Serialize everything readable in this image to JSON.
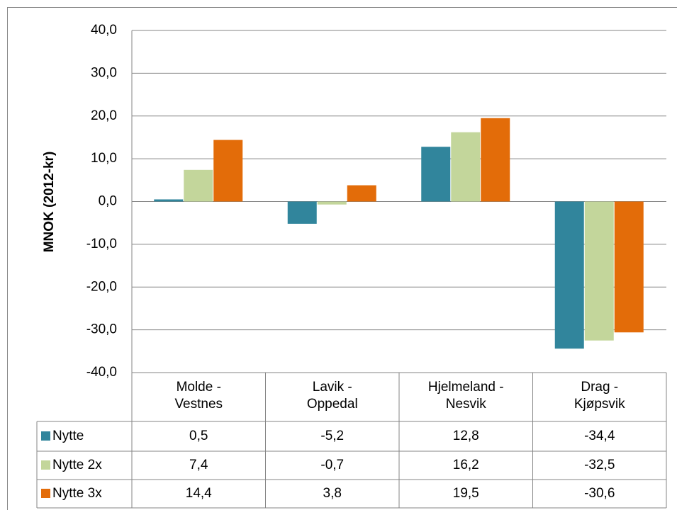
{
  "chart_data": {
    "type": "bar",
    "y_label": "MNOK (2012-kr)",
    "categories": [
      "Molde - Vestnes",
      "Lavik - Oppedal",
      "Hjelmeland - Nesvik",
      "Drag - Kjøpsvik"
    ],
    "series": [
      {
        "name": "Nytte",
        "color": "#31859c",
        "values": [
          0.5,
          -5.2,
          12.8,
          -34.4
        ],
        "value_labels": [
          "0,5",
          "-5,2",
          "12,8",
          "-34,4"
        ]
      },
      {
        "name": "Nytte 2x",
        "color": "#c3d69b",
        "values": [
          7.4,
          -0.7,
          16.2,
          -32.5
        ],
        "value_labels": [
          "7,4",
          "-0,7",
          "16,2",
          "-32,5"
        ]
      },
      {
        "name": "Nytte 3x",
        "color": "#e36c09",
        "values": [
          14.4,
          3.8,
          19.5,
          -30.6
        ],
        "value_labels": [
          "14,4",
          "3,8",
          "19,5",
          "-30,6"
        ]
      }
    ],
    "ylim": [
      -40,
      40
    ],
    "yticks": [
      {
        "value": -40,
        "label": "-40,0"
      },
      {
        "value": -30,
        "label": "-30,0"
      },
      {
        "value": -20,
        "label": "-20,0"
      },
      {
        "value": -10,
        "label": "-10,0"
      },
      {
        "value": 0,
        "label": "0,0"
      },
      {
        "value": 10,
        "label": "10,0"
      },
      {
        "value": 20,
        "label": "20,0"
      },
      {
        "value": 30,
        "label": "30,0"
      },
      {
        "value": 40,
        "label": "40,0"
      }
    ],
    "grid": true
  }
}
